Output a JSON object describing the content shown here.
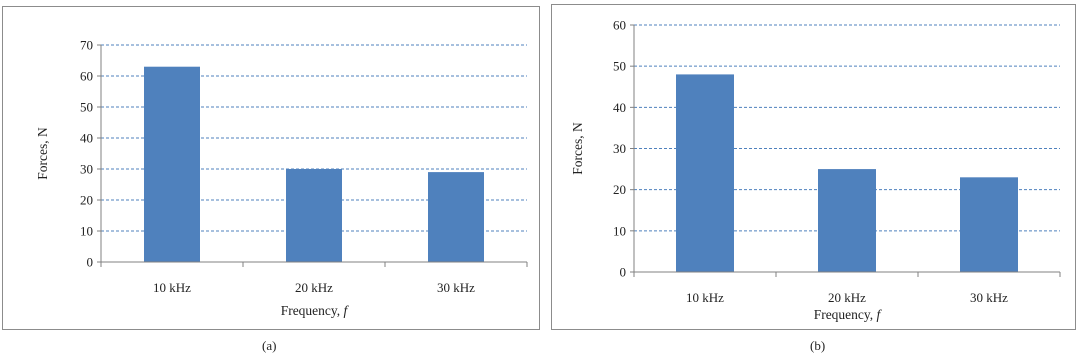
{
  "chart_data": [
    {
      "type": "bar",
      "categories": [
        "10 kHz",
        "20 kHz",
        "30 kHz"
      ],
      "values": [
        63,
        30,
        29
      ],
      "ylabel": "Forces, N",
      "xlabel": "Frequency,",
      "xlabel_symbol": "f",
      "ylim": [
        0,
        70
      ],
      "yticks": [
        0,
        10,
        20,
        30,
        40,
        50,
        60,
        70
      ],
      "grid": true,
      "bar_color": "#4f81bd",
      "grid_color": "#4f81bd",
      "caption": "(a)"
    },
    {
      "type": "bar",
      "categories": [
        "10 kHz",
        "20 kHz",
        "30 kHz"
      ],
      "values": [
        48,
        25,
        23
      ],
      "ylabel": "Forces, N",
      "xlabel": "Frequency,",
      "xlabel_symbol": "f",
      "ylim": [
        0,
        60
      ],
      "yticks": [
        0,
        10,
        20,
        30,
        40,
        50,
        60
      ],
      "grid": true,
      "bar_color": "#4f81bd",
      "grid_color": "#4f81bd",
      "caption": "(b)"
    }
  ]
}
